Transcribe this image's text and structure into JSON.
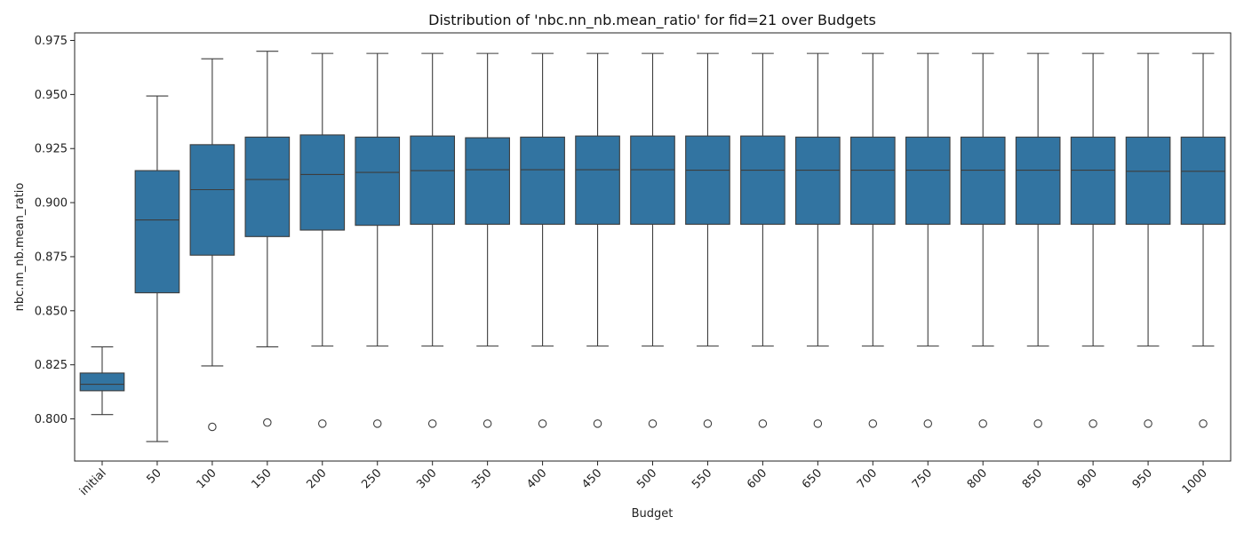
{
  "chart_data": {
    "type": "box",
    "title": "Distribution of 'nbc.nn_nb.mean_ratio' for fid=21 over Budgets",
    "xlabel": "Budget",
    "ylabel": "nbc.nn_nb.mean_ratio",
    "ylim": [
      0.7805,
      0.9785
    ],
    "yticks": [
      0.8,
      0.825,
      0.85,
      0.875,
      0.9,
      0.925,
      0.95,
      0.975
    ],
    "ytick_labels": [
      "0.800",
      "0.825",
      "0.850",
      "0.875",
      "0.900",
      "0.925",
      "0.950",
      "0.975"
    ],
    "grid": false,
    "box_color": "#3274a1",
    "line_color": "#3d3d3d",
    "categories": [
      "initial",
      "50",
      "100",
      "150",
      "200",
      "250",
      "300",
      "350",
      "400",
      "450",
      "500",
      "550",
      "600",
      "650",
      "700",
      "750",
      "800",
      "850",
      "900",
      "950",
      "1000"
    ],
    "boxes": [
      {
        "whisker_low": 0.802,
        "q1": 0.813,
        "median": 0.816,
        "q3": 0.8212,
        "whisker_high": 0.8333,
        "outliers": []
      },
      {
        "whisker_low": 0.7895,
        "q1": 0.8583,
        "median": 0.892,
        "q3": 0.9148,
        "whisker_high": 0.9493,
        "outliers": []
      },
      {
        "whisker_low": 0.8245,
        "q1": 0.8757,
        "median": 0.906,
        "q3": 0.9268,
        "whisker_high": 0.9665,
        "outliers": [
          0.7963
        ]
      },
      {
        "whisker_low": 0.8333,
        "q1": 0.8843,
        "median": 0.9107,
        "q3": 0.9303,
        "whisker_high": 0.97,
        "outliers": [
          0.7983
        ]
      },
      {
        "whisker_low": 0.8337,
        "q1": 0.8873,
        "median": 0.913,
        "q3": 0.9313,
        "whisker_high": 0.969,
        "outliers": [
          0.7978
        ]
      },
      {
        "whisker_low": 0.8337,
        "q1": 0.8895,
        "median": 0.914,
        "q3": 0.9303,
        "whisker_high": 0.969,
        "outliers": [
          0.7978
        ]
      },
      {
        "whisker_low": 0.8337,
        "q1": 0.89,
        "median": 0.9148,
        "q3": 0.9308,
        "whisker_high": 0.969,
        "outliers": [
          0.7978
        ]
      },
      {
        "whisker_low": 0.8337,
        "q1": 0.89,
        "median": 0.9152,
        "q3": 0.93,
        "whisker_high": 0.969,
        "outliers": [
          0.7978
        ]
      },
      {
        "whisker_low": 0.8337,
        "q1": 0.89,
        "median": 0.9152,
        "q3": 0.9303,
        "whisker_high": 0.969,
        "outliers": [
          0.7978
        ]
      },
      {
        "whisker_low": 0.8337,
        "q1": 0.89,
        "median": 0.9152,
        "q3": 0.9308,
        "whisker_high": 0.969,
        "outliers": [
          0.7978
        ]
      },
      {
        "whisker_low": 0.8337,
        "q1": 0.89,
        "median": 0.9152,
        "q3": 0.9308,
        "whisker_high": 0.969,
        "outliers": [
          0.7978
        ]
      },
      {
        "whisker_low": 0.8337,
        "q1": 0.89,
        "median": 0.915,
        "q3": 0.9308,
        "whisker_high": 0.969,
        "outliers": [
          0.7978
        ]
      },
      {
        "whisker_low": 0.8337,
        "q1": 0.89,
        "median": 0.915,
        "q3": 0.9308,
        "whisker_high": 0.969,
        "outliers": [
          0.7978
        ]
      },
      {
        "whisker_low": 0.8337,
        "q1": 0.89,
        "median": 0.915,
        "q3": 0.9303,
        "whisker_high": 0.969,
        "outliers": [
          0.7978
        ]
      },
      {
        "whisker_low": 0.8337,
        "q1": 0.89,
        "median": 0.915,
        "q3": 0.9303,
        "whisker_high": 0.969,
        "outliers": [
          0.7978
        ]
      },
      {
        "whisker_low": 0.8337,
        "q1": 0.89,
        "median": 0.915,
        "q3": 0.9303,
        "whisker_high": 0.969,
        "outliers": [
          0.7978
        ]
      },
      {
        "whisker_low": 0.8337,
        "q1": 0.89,
        "median": 0.915,
        "q3": 0.9303,
        "whisker_high": 0.969,
        "outliers": [
          0.7978
        ]
      },
      {
        "whisker_low": 0.8337,
        "q1": 0.89,
        "median": 0.915,
        "q3": 0.9303,
        "whisker_high": 0.969,
        "outliers": [
          0.7978
        ]
      },
      {
        "whisker_low": 0.8337,
        "q1": 0.89,
        "median": 0.915,
        "q3": 0.9303,
        "whisker_high": 0.969,
        "outliers": [
          0.7978
        ]
      },
      {
        "whisker_low": 0.8337,
        "q1": 0.89,
        "median": 0.9145,
        "q3": 0.9303,
        "whisker_high": 0.969,
        "outliers": [
          0.7978
        ]
      },
      {
        "whisker_low": 0.8337,
        "q1": 0.89,
        "median": 0.9145,
        "q3": 0.9303,
        "whisker_high": 0.969,
        "outliers": [
          0.7978
        ]
      }
    ]
  }
}
